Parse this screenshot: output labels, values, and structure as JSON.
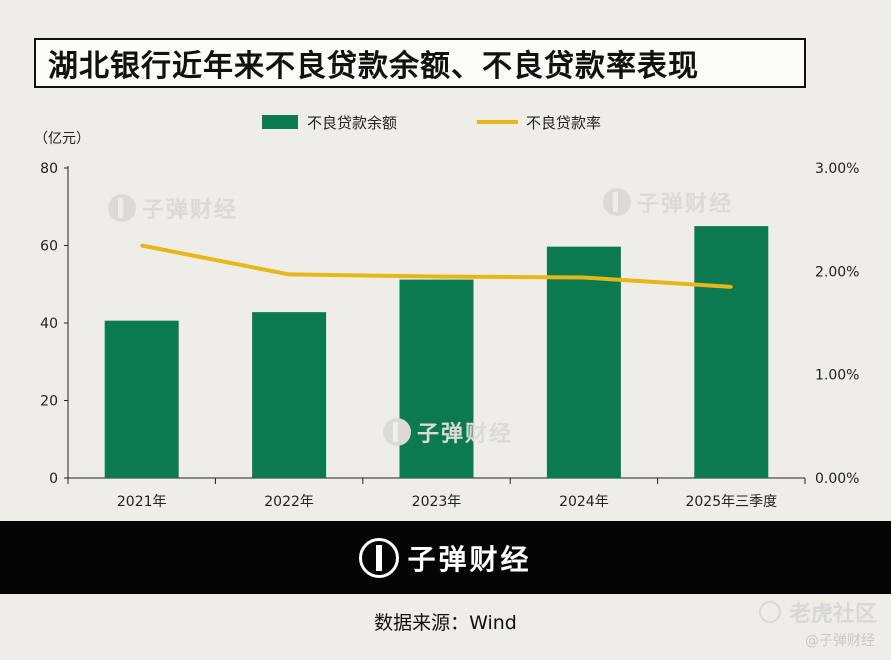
{
  "title": "湖北银行近年来不良贷款余额、不良贷款率表现",
  "watermark": "子弹财经",
  "footer": {
    "logo_text": "子弹财经",
    "source": "数据来源：Wind"
  },
  "corner": {
    "community": "老虎社区",
    "handle": "@子弹财经"
  },
  "colors": {
    "bar": "#0c7a4f",
    "line": "#e7b617",
    "axis": "#222222"
  },
  "chart_data": {
    "type": "bar",
    "categories": [
      "2021年",
      "2022年",
      "2023年",
      "2024年",
      "2025年三季度"
    ],
    "series": [
      {
        "name": "不良贷款余额",
        "type": "bar",
        "axis": "left",
        "values": [
          40.6,
          42.8,
          51.2,
          59.7,
          65.0
        ]
      },
      {
        "name": "不良贷款率",
        "type": "line",
        "axis": "right",
        "values": [
          2.25,
          1.97,
          1.95,
          1.94,
          1.85
        ]
      }
    ],
    "ylabel": "（亿元）",
    "ylim": [
      0,
      80
    ],
    "yticks": [
      "0",
      "20",
      "40",
      "60",
      "80"
    ],
    "y2lim": [
      0,
      3
    ],
    "y2ticks": [
      "0.00%",
      "1.00%",
      "2.00%",
      "3.00%"
    ],
    "legend_position": "top",
    "grid": false
  }
}
